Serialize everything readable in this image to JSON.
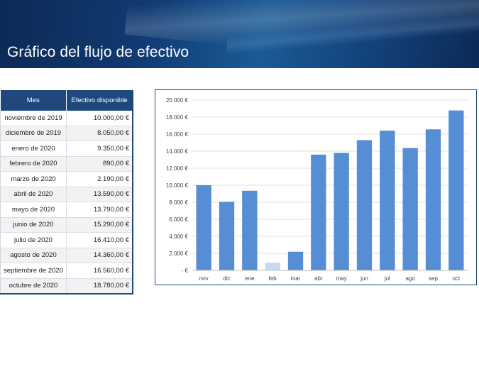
{
  "title": "Gráfico del flujo de efectivo",
  "table": {
    "headers": [
      "Mes",
      "Efectivo disponible"
    ],
    "rows": [
      {
        "month": "noviembre de 2019",
        "value": "10.000,00 €"
      },
      {
        "month": "diciembre de 2019",
        "value": "8.050,00 €"
      },
      {
        "month": "enero de 2020",
        "value": "9.350,00 €"
      },
      {
        "month": "febrero de 2020",
        "value": "890,00 €"
      },
      {
        "month": "marzo de 2020",
        "value": "2.190,00 €"
      },
      {
        "month": "abril de 2020",
        "value": "13.590,00 €"
      },
      {
        "month": "mayo de 2020",
        "value": "13.790,00 €"
      },
      {
        "month": "junio de 2020",
        "value": "15.290,00 €"
      },
      {
        "month": "julio de 2020",
        "value": "16.410,00 €"
      },
      {
        "month": "agosto de 2020",
        "value": "14.360,00 €"
      },
      {
        "month": "septiembre de 2020",
        "value": "16.560,00 €"
      },
      {
        "month": "octubre de 2020",
        "value": "18.780,00 €"
      }
    ]
  },
  "colors": {
    "header": "#1f497d",
    "bar": "#558ed5",
    "bar_highlight": "#c6d9f1",
    "grid": "#d9d9d9"
  },
  "chart_data": {
    "type": "bar",
    "categories": [
      "nov",
      "dic",
      "ene",
      "feb",
      "mar",
      "abr",
      "may",
      "jun",
      "jul",
      "ago",
      "sep",
      "oct"
    ],
    "values": [
      10000,
      8050,
      9350,
      890,
      2190,
      13590,
      13790,
      15290,
      16410,
      14360,
      16560,
      18780
    ],
    "highlight_index": 3,
    "ylim": [
      0,
      20000
    ],
    "ytick_labels": [
      "- €",
      "2.000 €",
      "4.000 €",
      "6.000 €",
      "8.000 €",
      "10.000 €",
      "12.000 €",
      "14.000 €",
      "16.000 €",
      "18.000 €",
      "20.000 €"
    ],
    "grid": true,
    "title": "",
    "xlabel": "",
    "ylabel": ""
  }
}
